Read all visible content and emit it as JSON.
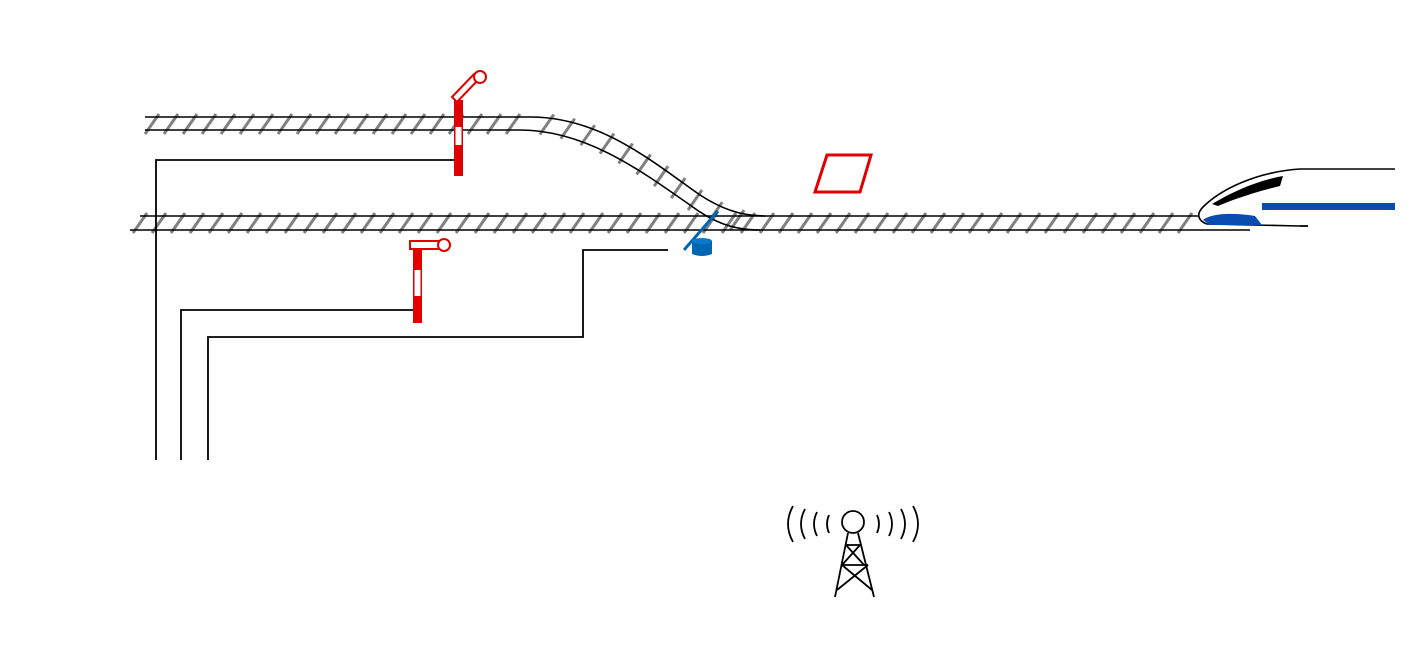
{
  "diagram": {
    "elements": [
      "upper-siding-track",
      "main-track",
      "semaphore-signal-upper",
      "semaphore-signal-lower",
      "point-machine",
      "balise",
      "high-speed-train",
      "radio-tower",
      "signal-cables"
    ]
  },
  "colors": {
    "rail": "#000000",
    "sleeper": "#808080",
    "signal": "#e00000",
    "point_machine": "#0066b3",
    "train_stripe": "#0a4bb0",
    "train_window": "#000000",
    "balise": "#e00000",
    "cable": "#000000",
    "tower": "#000000"
  },
  "icons": {
    "signal_upper": "semaphore-signal-icon",
    "signal_lower": "semaphore-signal-icon",
    "point_machine": "point-machine-icon",
    "balise": "balise-icon",
    "train": "train-icon",
    "tower": "radio-tower-icon"
  }
}
